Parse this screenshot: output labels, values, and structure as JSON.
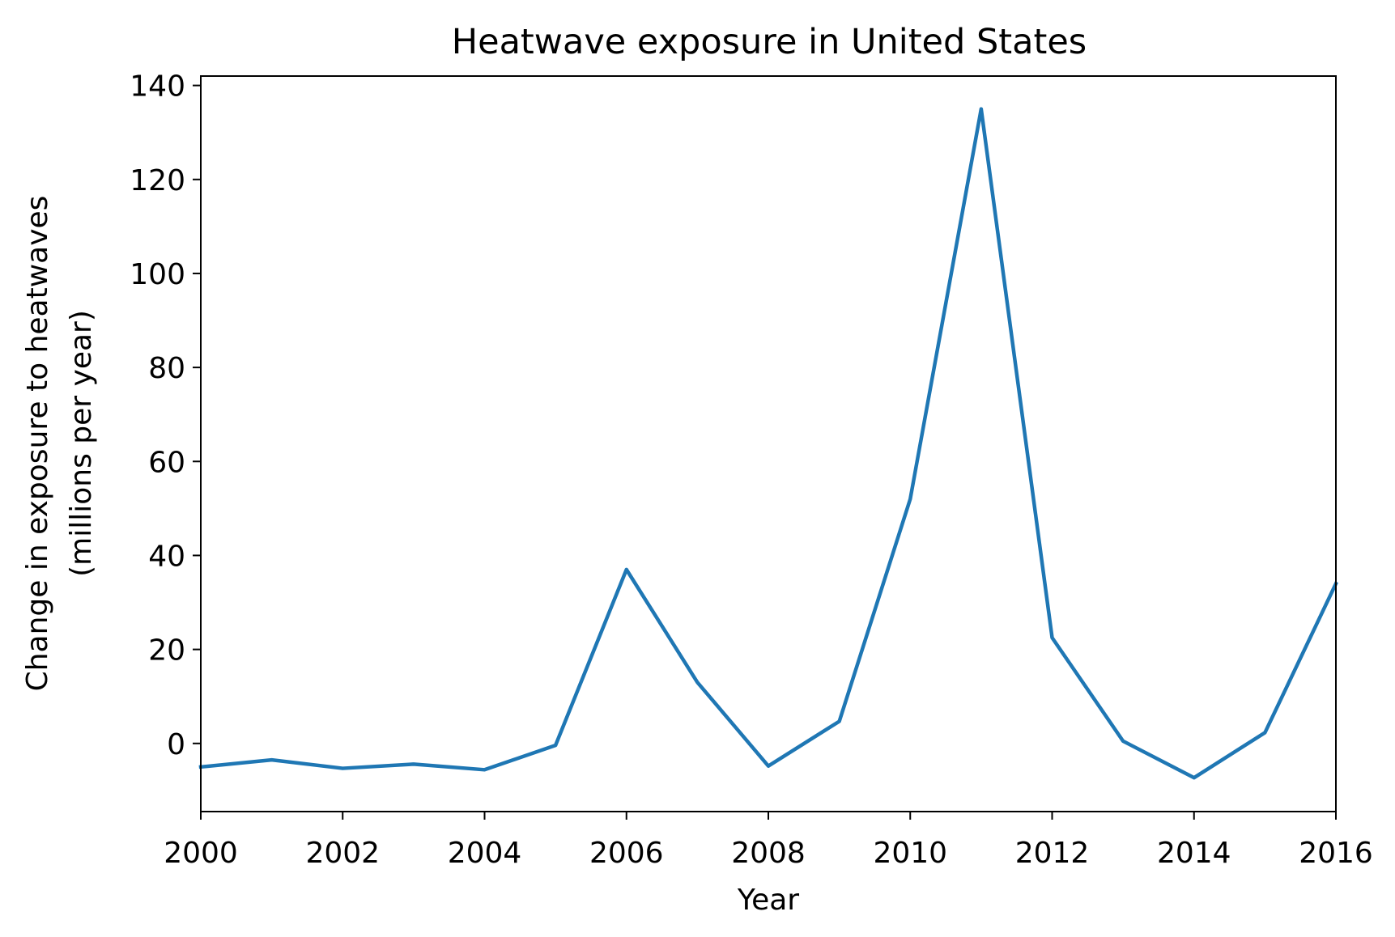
{
  "chart_data": {
    "type": "line",
    "title": "Heatwave exposure in United States",
    "xlabel": "Year",
    "ylabel": [
      "Change in exposure to heatwaves",
      "(millions per year)"
    ],
    "x": [
      2000,
      2001,
      2002,
      2003,
      2004,
      2005,
      2006,
      2007,
      2008,
      2009,
      2010,
      2011,
      2012,
      2013,
      2014,
      2015,
      2016
    ],
    "series": [
      {
        "values": [
          -5.0,
          -3.5,
          -5.3,
          -4.4,
          -5.6,
          -0.4,
          37.0,
          13.0,
          -4.8,
          4.7,
          52.0,
          135.0,
          22.5,
          0.5,
          -7.3,
          2.3,
          34.0
        ]
      }
    ],
    "xlim": [
      2000,
      2016
    ],
    "ylim": [
      -14.5,
      142
    ],
    "xticks": [
      2000,
      2002,
      2004,
      2006,
      2008,
      2010,
      2012,
      2014,
      2016
    ],
    "yticks": [
      0,
      20,
      40,
      60,
      80,
      100,
      120,
      140
    ],
    "grid": false,
    "line_color": "#1f77b4"
  }
}
